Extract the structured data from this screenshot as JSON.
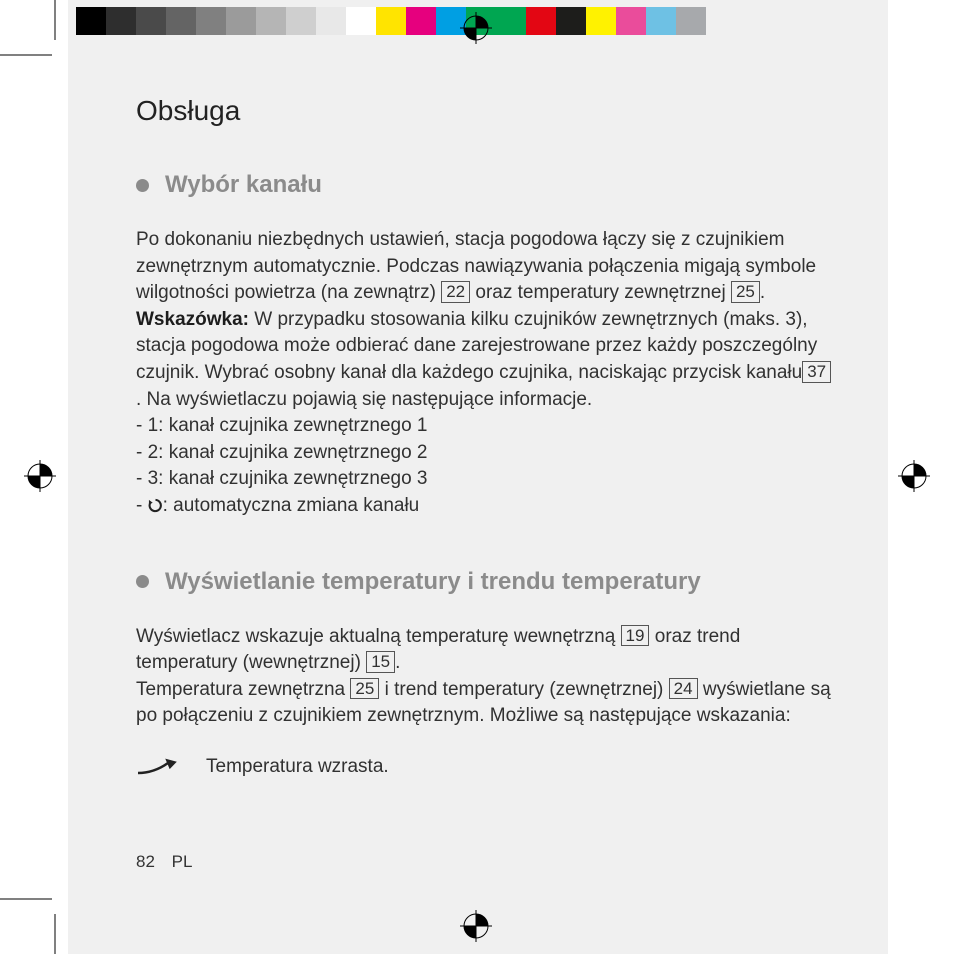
{
  "colorbar": {
    "colors": [
      "#000000",
      "#2e2e2e",
      "#4a4a4a",
      "#646464",
      "#808080",
      "#9b9b9b",
      "#b5b5b5",
      "#cfcfcf",
      "#e8e8e8",
      "#ffffff",
      "#ffe400",
      "#e6007e",
      "#009fe3",
      "#00a651",
      "#00a651",
      "#e30613",
      "#1d1d1b",
      "#fff200",
      "#ea4c9b",
      "#6ec1e4",
      "#a7a9ac"
    ]
  },
  "page": {
    "chapter": "Obsługa",
    "page_number": "82",
    "lang_code": "PL"
  },
  "section1": {
    "title": "Wybór kanału",
    "p1a": "Po dokonaniu niezbędnych ustawień, stacja pogodowa łączy się z czujnikiem zewnętrznym automatycznie. Podczas nawiązywania połączenia migają symbole wilgotności powietrza (na zewnątrz) ",
    "ref22": "22",
    "p1b": " oraz temperatury zewnętrznej ",
    "ref25": "25",
    "p1c": ".",
    "hint_label": "Wskazówka:",
    "p2a": " W przypadku stosowania kilku czujników zewnętrznych (maks. 3), stacja pogodowa może odbierać dane zarejestrowane przez każdy poszczególny czujnik. Wybrać osobny kanał dla każdego czujnika, naciskając przycisk kanału",
    "ref37": "37",
    "p2b": ". Na wyświetlaczu pojawią się następujące informacje.",
    "l1": "- 1: kanał czujnika zewnętrznego 1",
    "l2": "- 2: kanał czujnika zewnętrznego 2",
    "l3": "- 3: kanał czujnika zewnętrznego 3",
    "l4_prefix": "- ",
    "l4_suffix": ": automatyczna zmiana kanału"
  },
  "section2": {
    "title": "Wyświetlanie temperatury i trendu temperatury",
    "p1a": "Wyświetlacz wskazuje aktualną temperaturę wewnętrzną ",
    "ref19": "19",
    "p1b": " oraz trend temperatury (wewnętrznej) ",
    "ref15": "15",
    "p1c": ".",
    "p2a": "Temperatura zewnętrzna ",
    "ref25": "25",
    "p2b": " i trend temperatury (zewnętrznej) ",
    "ref24": "24",
    "p2c": " wyświetlane są po połączeniu z czujnikiem zewnętrznym. Możliwe są następujące wskazania:",
    "trend_label": "Temperatura wzrasta."
  }
}
